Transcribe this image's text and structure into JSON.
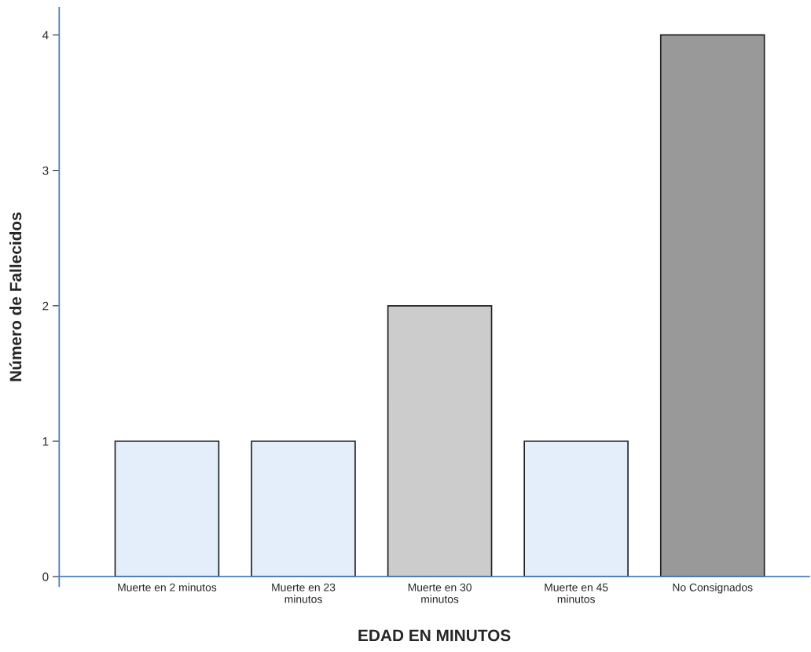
{
  "chart_data": {
    "type": "bar",
    "xlabel": "EDAD EN MINUTOS",
    "ylabel": "Número de Fallecidos",
    "categories": [
      "Muerte en 2 minutos",
      "Muerte en 23\nminutos",
      "Muerte en 30\nminutos",
      "Muerte en 45\nminutos",
      "No Consignados"
    ],
    "values": [
      1,
      1,
      2,
      1,
      4
    ],
    "colors": [
      "#e3eefa",
      "#e3eefa",
      "#cccccc",
      "#e3eefa",
      "#999999"
    ],
    "ylim": [
      -0.07,
      4.2
    ],
    "yticks": [
      0,
      1,
      2,
      3,
      4
    ],
    "grid": false
  }
}
